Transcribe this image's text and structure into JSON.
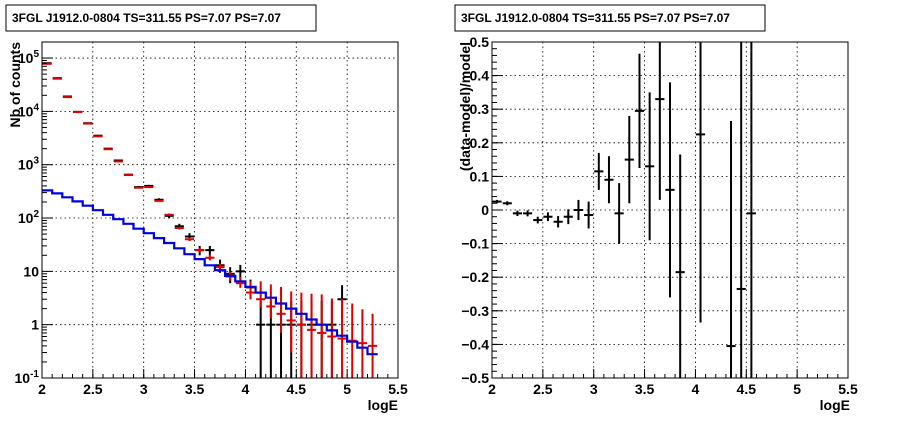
{
  "chart_data": [
    {
      "type": "scatter",
      "title": "3FGL J1912.0-0804 TS=311.55 PS=7.07 PS=7.07",
      "xlabel": "logE",
      "ylabel": "Nb of counts",
      "xlim": [
        2,
        5.5
      ],
      "ylim": [
        0.1,
        200000
      ],
      "yscale": "log",
      "grid": true,
      "x_ticks": [
        "2",
        "2.5",
        "3",
        "3.5",
        "4",
        "4.5",
        "5",
        "5.5"
      ],
      "y_ticks": [
        "10^{-1}",
        "1",
        "10",
        "10^{2}",
        "10^{3}",
        "10^{4}",
        "10^{5}"
      ],
      "series": [
        {
          "color": "#000000",
          "style": "errorbar",
          "x": [
            2.05,
            2.15,
            2.25,
            2.35,
            2.45,
            2.55,
            2.65,
            2.75,
            2.85,
            2.95,
            3.05,
            3.15,
            3.25,
            3.35,
            3.45,
            3.55,
            3.65,
            3.75,
            3.85,
            3.95,
            4.05,
            4.15,
            4.25,
            4.35,
            4.45,
            4.55,
            4.65,
            4.75,
            4.85,
            4.95
          ],
          "y": [
            80000,
            42000,
            19000,
            9800,
            6000,
            3500,
            2000,
            1200,
            650,
            380,
            400,
            220,
            110,
            70,
            45,
            25,
            25,
            13,
            9,
            10,
            5,
            1,
            1,
            1,
            1,
            1,
            1,
            1,
            1,
            3
          ],
          "yerr_low": [
            280,
            200,
            140,
            100,
            78,
            60,
            45,
            35,
            25,
            19,
            20,
            15,
            11,
            8,
            7,
            5,
            5,
            3.6,
            3,
            3.2,
            2,
            0.9,
            0.9,
            0.9,
            0.9,
            0.9,
            0.9,
            0.9,
            0.9,
            1.7
          ],
          "yerr_high": [
            280,
            200,
            140,
            100,
            78,
            60,
            45,
            35,
            25,
            19,
            20,
            15,
            11,
            8,
            7,
            5,
            5,
            3.6,
            3,
            3.2,
            2,
            1.8,
            1.8,
            1.8,
            1.8,
            1.8,
            1.8,
            1.8,
            1.8,
            2.5
          ]
        },
        {
          "color": "#dd0000",
          "style": "errorbar",
          "x": [
            2.05,
            2.15,
            2.25,
            2.35,
            2.45,
            2.55,
            2.65,
            2.75,
            2.85,
            2.95,
            3.05,
            3.15,
            3.25,
            3.35,
            3.45,
            3.55,
            3.65,
            3.75,
            3.85,
            3.95,
            4.05,
            4.15,
            4.25,
            4.35,
            4.45,
            4.55,
            4.65,
            4.75,
            4.85,
            4.95,
            5.05,
            5.15,
            5.25
          ],
          "y": [
            78000,
            41000,
            18500,
            9700,
            5900,
            3400,
            1950,
            1150,
            640,
            370,
            380,
            210,
            115,
            65,
            40,
            25,
            18,
            12,
            8,
            6,
            4,
            3,
            2.2,
            1.6,
            1.2,
            1,
            0.8,
            0.7,
            0.6,
            0.55,
            0.5,
            0.45,
            0.4
          ],
          "yerr_low": [
            10,
            10,
            10,
            10,
            10,
            10,
            10,
            10,
            10,
            8,
            8,
            6,
            5,
            4,
            3,
            2.5,
            2,
            1.6,
            1.3,
            1.1,
            1,
            0.9,
            0.9,
            0.9,
            0.9,
            0.9,
            0.7,
            0.6,
            0.5,
            0.45,
            0.4,
            0.35,
            0.3
          ],
          "yerr_high": [
            10,
            10,
            10,
            10,
            10,
            10,
            10,
            10,
            10,
            8,
            8,
            6,
            5,
            4,
            3,
            2.5,
            2.5,
            2,
            1.8,
            1.8,
            2.5,
            3.5,
            3.5,
            3.5,
            3,
            3,
            3,
            3,
            2.5,
            2.5,
            2,
            1.5,
            1.2
          ]
        },
        {
          "color": "#0000dd",
          "style": "step",
          "edges": [
            2.0,
            2.1,
            2.2,
            2.3,
            2.4,
            2.5,
            2.6,
            2.7,
            2.8,
            2.9,
            3.0,
            3.1,
            3.2,
            3.3,
            3.4,
            3.5,
            3.6,
            3.7,
            3.8,
            3.9,
            4.0,
            4.1,
            4.2,
            4.3,
            4.4,
            4.5,
            4.6,
            4.7,
            4.8,
            4.9,
            5.0,
            5.1,
            5.2,
            5.3
          ],
          "values": [
            330,
            290,
            245,
            205,
            170,
            140,
            115,
            95,
            78,
            63,
            52,
            42,
            34,
            27,
            21,
            17,
            13,
            10.5,
            8.2,
            6.5,
            5.1,
            4,
            3.2,
            2.5,
            2,
            1.6,
            1.25,
            1,
            0.78,
            0.62,
            0.48,
            0.37,
            0.28
          ]
        }
      ]
    },
    {
      "type": "scatter",
      "title": "3FGL J1912.0-0804 TS=311.55 PS=7.07 PS=7.07",
      "xlabel": "logE",
      "ylabel": "(data-model)/model",
      "xlim": [
        2,
        5.5
      ],
      "ylim": [
        -0.5,
        0.5
      ],
      "grid": true,
      "x_ticks": [
        "2",
        "2.5",
        "3",
        "3.5",
        "4",
        "4.5",
        "5",
        "5.5"
      ],
      "y_ticks": [
        "−0.5",
        "−0.4",
        "−0.3",
        "−0.2",
        "−0.1",
        "0",
        "0.1",
        "0.2",
        "0.3",
        "0.4",
        "0.5"
      ],
      "series": [
        {
          "color": "#000000",
          "style": "errorbar",
          "x": [
            2.05,
            2.15,
            2.25,
            2.35,
            2.45,
            2.55,
            2.65,
            2.75,
            2.85,
            2.95,
            3.05,
            3.15,
            3.25,
            3.35,
            3.45,
            3.55,
            3.65,
            3.75,
            3.85,
            4.05,
            4.35,
            4.45,
            4.55
          ],
          "y": [
            0.025,
            0.02,
            -0.01,
            -0.01,
            -0.03,
            -0.02,
            -0.035,
            -0.02,
            0,
            -0.015,
            0.115,
            0.09,
            -0.01,
            0.15,
            0.295,
            0.13,
            0.33,
            0.06,
            -0.185,
            0.225,
            -0.405,
            -0.235,
            -0.01
          ],
          "yerr": [
            0.005,
            0.006,
            0.008,
            0.009,
            0.01,
            0.013,
            0.017,
            0.022,
            0.03,
            0.04,
            0.055,
            0.07,
            0.09,
            0.13,
            0.17,
            0.22,
            0.3,
            0.32,
            0.35,
            0.56,
            0.67,
            0.8,
            0.9
          ]
        }
      ]
    }
  ]
}
